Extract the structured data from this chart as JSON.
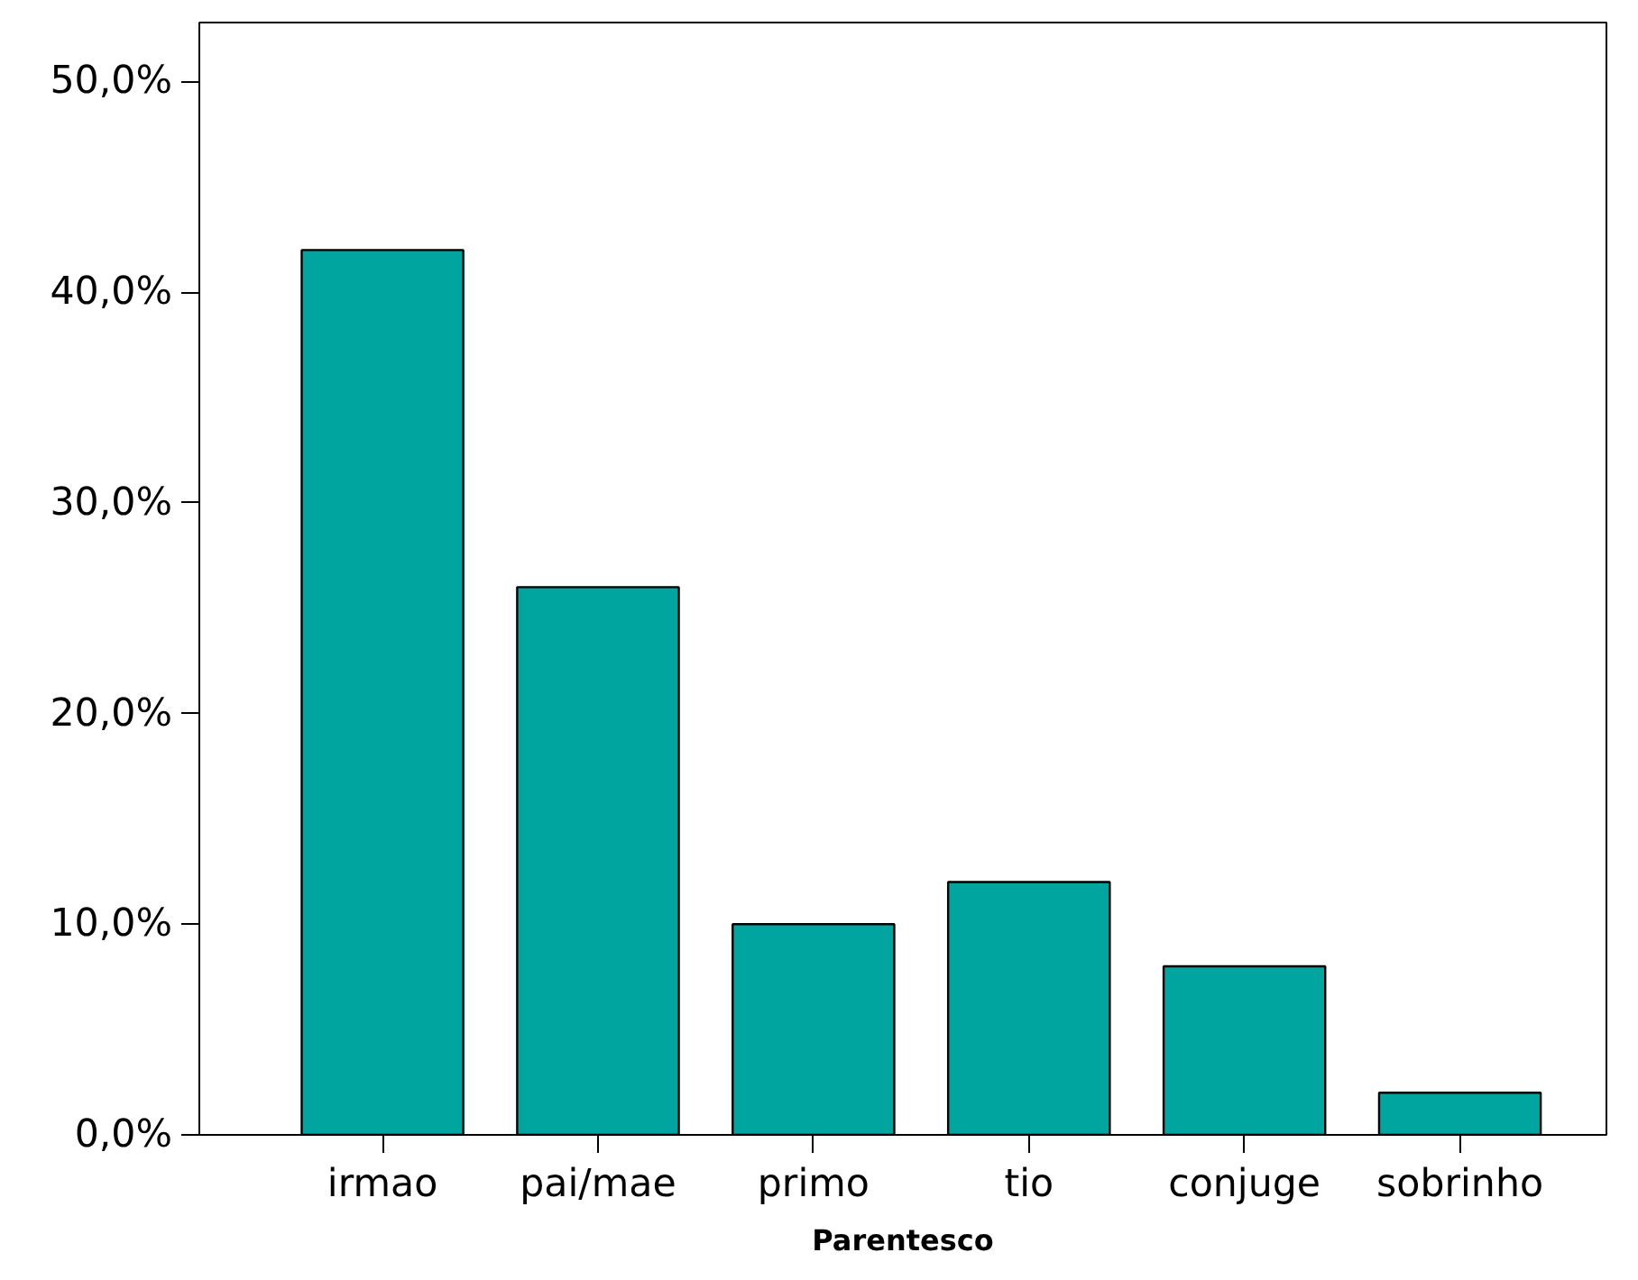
{
  "chart_data": {
    "type": "bar",
    "xlabel": "Parentesco",
    "categories": [
      "irmao",
      "pai/mae",
      "primo",
      "tio",
      "conjuge",
      "sobrinho"
    ],
    "values": [
      42,
      26,
      10,
      12,
      8,
      2
    ],
    "color": "#00a5a0",
    "ylim": [
      0,
      52.8
    ],
    "yticks": [
      {
        "value": 0,
        "label": "0,0%"
      },
      {
        "value": 10,
        "label": "10,0%"
      },
      {
        "value": 20,
        "label": "20,0%"
      },
      {
        "value": 30,
        "label": "30,0%"
      },
      {
        "value": 40,
        "label": "40,0%"
      },
      {
        "value": 50,
        "label": "50,0%"
      }
    ],
    "grid": false
  }
}
